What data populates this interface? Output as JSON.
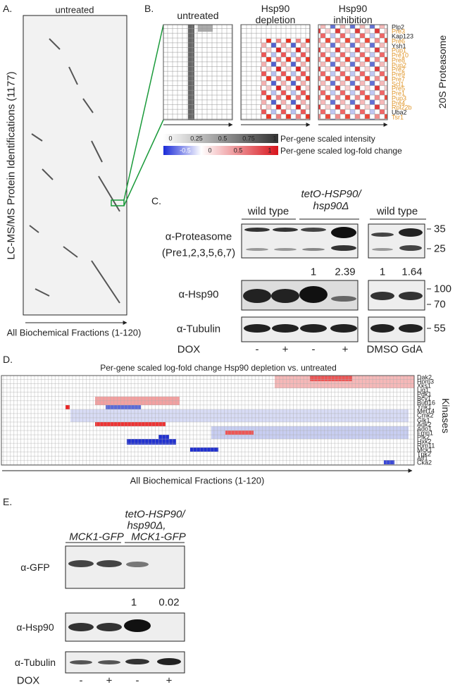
{
  "panel_a": {
    "label": "A.",
    "title": "untreated",
    "y_label": "LC-MS/MS Protein Identifications (1177)",
    "x_label": "All Biochemical Fractions (1-120)"
  },
  "panel_b": {
    "label": "B.",
    "columns": [
      "untreated",
      "Hsp90 depletion",
      "Hsp90 inhibition"
    ],
    "genes": [
      {
        "name": "Plp2",
        "color": "#222222"
      },
      {
        "name": "Pre3",
        "color": "#e0962a"
      },
      {
        "name": "Kap123",
        "color": "#222222"
      },
      {
        "name": "Pre6",
        "color": "#e0962a"
      },
      {
        "name": "Ysh1",
        "color": "#222222"
      },
      {
        "name": "Pup1",
        "color": "#e0962a"
      },
      {
        "name": "Pre10",
        "color": "#e0962a"
      },
      {
        "name": "Pre8",
        "color": "#e0962a"
      },
      {
        "name": "Pup2",
        "color": "#e0962a"
      },
      {
        "name": "Pre2",
        "color": "#e0962a"
      },
      {
        "name": "Pre9",
        "color": "#e0962a"
      },
      {
        "name": "Pre7",
        "color": "#e0962a"
      },
      {
        "name": "Scl1",
        "color": "#e0962a"
      },
      {
        "name": "Pre5",
        "color": "#e0962a"
      },
      {
        "name": "Pre1",
        "color": "#e0962a"
      },
      {
        "name": "Pup3",
        "color": "#e0962a"
      },
      {
        "name": "Pre4",
        "color": "#e0962a"
      },
      {
        "name": "Rpl22b",
        "color": "#e0962a"
      },
      {
        "name": "Uba2",
        "color": "#222222"
      },
      {
        "name": "Tsr1",
        "color": "#e0962a"
      }
    ],
    "group_label": "20S Proteasome",
    "intensity_ticks": [
      0,
      0.25,
      0.5,
      0.75,
      1
    ],
    "intensity_label": "Per-gene scaled intensity",
    "logfold_ticks": [
      -0.5,
      0,
      0.5,
      1
    ],
    "logfold_label": "Per-gene scaled log-fold change"
  },
  "panel_c": {
    "label": "C.",
    "groups": [
      "wild type",
      "tetO-HSP90/ hsp90Δ",
      "wild type"
    ],
    "rows": [
      "α-Proteasome",
      "(Pre1,2,3,5,6,7)",
      "α-Hsp90",
      "α-Tubulin"
    ],
    "quantification": [
      1,
      2.39,
      1,
      1.64
    ],
    "markers": [
      35,
      25,
      100,
      70,
      55
    ],
    "treatment_label": "DOX",
    "treatments": [
      "-",
      "+",
      "-",
      "+",
      "DMSO",
      "GdA"
    ]
  },
  "panel_d": {
    "label": "D.",
    "title": "Per-gene scaled log-fold change Hsp90 depletion vs. untreated",
    "genes": [
      "Dak2",
      "Hom3",
      "Xks1",
      "Lig1",
      "Pgk1",
      "Bcy1",
      "Bud16",
      "Ynk1",
      "Met14",
      "Cmk2",
      "Glk1",
      "Adk2",
      "Ado1",
      "Fmn1",
      "Pfk2",
      "Hxk2",
      "Rim11",
      "Mck1",
      "Tpk2",
      "Alf1",
      "Cka2"
    ],
    "group_label": "Kinases",
    "x_label": "All Biochemical Fractions (1-120)"
  },
  "panel_e": {
    "label": "E.",
    "groups": [
      "MCK1-GFP",
      "tetO-HSP90/",
      "hsp90Δ,",
      "MCK1-GFP"
    ],
    "rows": [
      "α-GFP",
      "α-Hsp90",
      "α-Tubulin"
    ],
    "quantification": [
      1,
      0.02
    ],
    "treatment_label": "DOX",
    "treatments": [
      "-",
      "+",
      "-",
      "+"
    ]
  }
}
